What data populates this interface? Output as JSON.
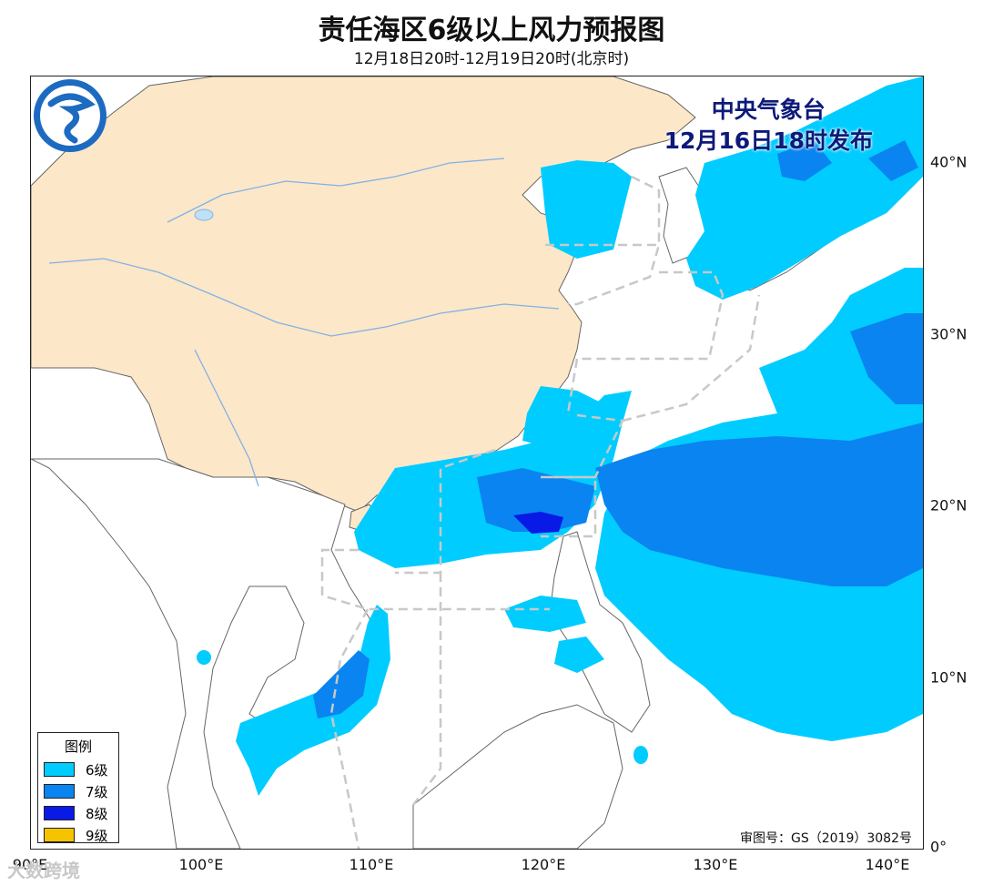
{
  "header": {
    "title": "责任海区6级以上风力预报图",
    "subtitle": "12月18日20时-12月19日20时(北京时)"
  },
  "publisher": {
    "name": "中央气象台",
    "issued": "12月16日18时发布"
  },
  "map": {
    "approval_number": "审图号：GS（2019）3082号",
    "lon_ticks": [
      "90°E",
      "100°E",
      "110°E",
      "120°E",
      "130°E",
      "140°E"
    ],
    "lat_ticks": [
      "40°N",
      "30°N",
      "20°N",
      "10°N",
      "0°"
    ],
    "colors": {
      "land_china": "#fde7c9",
      "ocean": "#ffffff",
      "level6": "#00ccff",
      "level7": "#0a84f0",
      "level8": "#0a1ae6",
      "level9": "#f6c300",
      "boundary": "#555555",
      "sea_zone": "#c8c8c8"
    }
  },
  "legend": {
    "title": "图例",
    "items": [
      {
        "label": "6级",
        "color": "#00ccff"
      },
      {
        "label": "7级",
        "color": "#0a84f0"
      },
      {
        "label": "8级",
        "color": "#0a1ae6"
      },
      {
        "label": "9级",
        "color": "#f6c300"
      }
    ]
  },
  "watermark": "大数跨境"
}
